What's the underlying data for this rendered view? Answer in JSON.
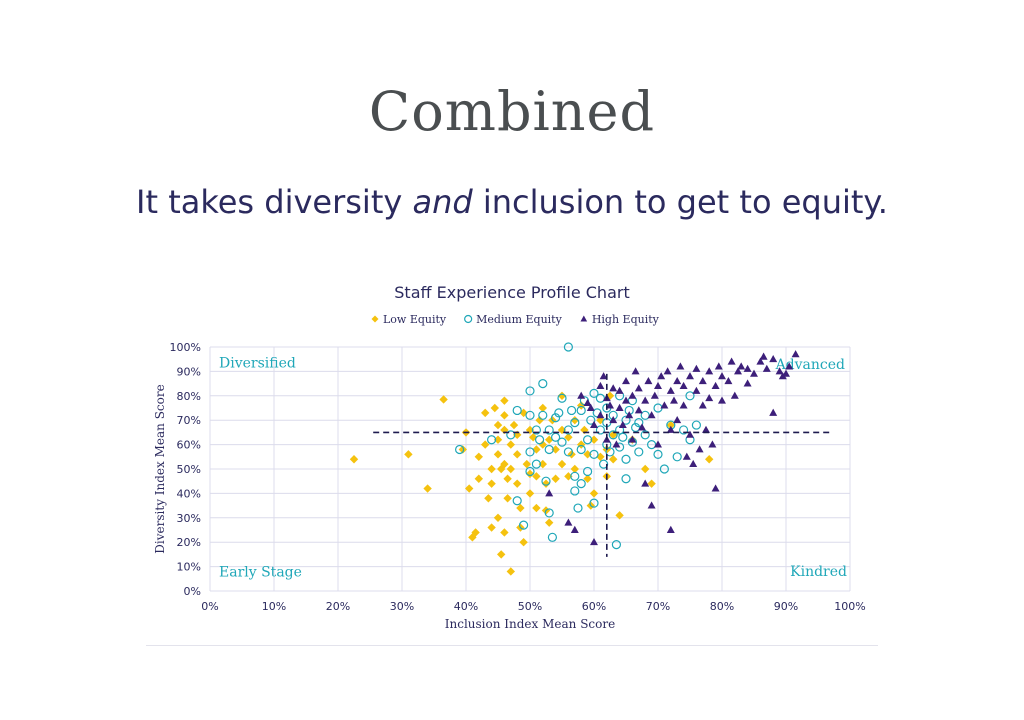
{
  "slide": {
    "title": "Combined",
    "subtitle_pre": "It takes diversity ",
    "subtitle_em": "and",
    "subtitle_post": " inclusion to get to equity."
  },
  "colors": {
    "low": "#f5c20f",
    "medium": "#1fa7b8",
    "high": "#3d1f7a",
    "quadrant_label": "#1fa7b8",
    "axis_text": "#2b2a5e",
    "grid": "#dcdcec"
  },
  "chart_data": {
    "type": "scatter",
    "title": "Staff Experience Profile Chart",
    "xlabel": "Inclusion Index Mean Score",
    "ylabel": "Diversity Index Mean Score",
    "xlim": [
      0,
      100
    ],
    "ylim": [
      0,
      100
    ],
    "x_ticks": [
      "0%",
      "10%",
      "20%",
      "30%",
      "40%",
      "50%",
      "60%",
      "70%",
      "80%",
      "90%",
      "100%"
    ],
    "y_ticks": [
      "0%",
      "10%",
      "20%",
      "30%",
      "40%",
      "50%",
      "60%",
      "70%",
      "80%",
      "90%",
      "100%"
    ],
    "grid": true,
    "legend_position": "top-center",
    "quadrant_labels": {
      "top_left": "Diversified",
      "top_right": "Advanced",
      "bottom_left": "Early Stage",
      "bottom_right": "Kindred"
    },
    "threshold_lines": {
      "x": 62,
      "y": 65
    },
    "series": [
      {
        "name": "Low Equity",
        "marker": "diamond",
        "points": [
          [
            22.5,
            54
          ],
          [
            31,
            56
          ],
          [
            34,
            42
          ],
          [
            36.5,
            78.5
          ],
          [
            39.5,
            58
          ],
          [
            40,
            65
          ],
          [
            40.5,
            42
          ],
          [
            41,
            22
          ],
          [
            41.5,
            24
          ],
          [
            42,
            46
          ],
          [
            42,
            55
          ],
          [
            43,
            73
          ],
          [
            43,
            60
          ],
          [
            43.5,
            38
          ],
          [
            44,
            44
          ],
          [
            44,
            50
          ],
          [
            44,
            26
          ],
          [
            44.5,
            75
          ],
          [
            45,
            68
          ],
          [
            45,
            62
          ],
          [
            45,
            56
          ],
          [
            45,
            30
          ],
          [
            45.5,
            50
          ],
          [
            45.5,
            15
          ],
          [
            46,
            78
          ],
          [
            46,
            72
          ],
          [
            46,
            66
          ],
          [
            46,
            52
          ],
          [
            46.5,
            46
          ],
          [
            46.5,
            38
          ],
          [
            46,
            24
          ],
          [
            47,
            8
          ],
          [
            47,
            60
          ],
          [
            47,
            50
          ],
          [
            47.5,
            68
          ],
          [
            48,
            64
          ],
          [
            48,
            56
          ],
          [
            48,
            44
          ],
          [
            48.5,
            34
          ],
          [
            48.5,
            26
          ],
          [
            49,
            73
          ],
          [
            49,
            20
          ],
          [
            49.5,
            52
          ],
          [
            50,
            66
          ],
          [
            50,
            48
          ],
          [
            50,
            40
          ],
          [
            50.5,
            63
          ],
          [
            51,
            58
          ],
          [
            51,
            47
          ],
          [
            51,
            34
          ],
          [
            51.5,
            70
          ],
          [
            52,
            75
          ],
          [
            52,
            60
          ],
          [
            52,
            52
          ],
          [
            52.5,
            44
          ],
          [
            52.5,
            33
          ],
          [
            53,
            28
          ],
          [
            53,
            62
          ],
          [
            53.5,
            70
          ],
          [
            54,
            58
          ],
          [
            54,
            46
          ],
          [
            55,
            66
          ],
          [
            55,
            52
          ],
          [
            55,
            80
          ],
          [
            56,
            63
          ],
          [
            56,
            47
          ],
          [
            56.5,
            56
          ],
          [
            57,
            70
          ],
          [
            57,
            50
          ],
          [
            58,
            60
          ],
          [
            58,
            76
          ],
          [
            58.5,
            66
          ],
          [
            59,
            56
          ],
          [
            59,
            46
          ],
          [
            59.5,
            35
          ],
          [
            60,
            40
          ],
          [
            60,
            62
          ],
          [
            61,
            70
          ],
          [
            61,
            55
          ],
          [
            62,
            58
          ],
          [
            62,
            47
          ],
          [
            62.5,
            80
          ],
          [
            63,
            64
          ],
          [
            63,
            54
          ],
          [
            64,
            31
          ],
          [
            66,
            62
          ],
          [
            68,
            50
          ],
          [
            69,
            44
          ],
          [
            72,
            68
          ],
          [
            78,
            54
          ]
        ]
      },
      {
        "name": "Medium Equity",
        "marker": "circle",
        "points": [
          [
            39,
            58
          ],
          [
            44,
            62
          ],
          [
            47,
            64
          ],
          [
            48,
            37
          ],
          [
            48,
            74
          ],
          [
            49,
            27
          ],
          [
            50,
            49
          ],
          [
            50,
            57
          ],
          [
            50,
            72
          ],
          [
            50,
            82
          ],
          [
            51,
            52
          ],
          [
            51,
            66
          ],
          [
            51.5,
            62
          ],
          [
            52,
            72
          ],
          [
            52,
            85
          ],
          [
            52.5,
            45
          ],
          [
            53,
            32
          ],
          [
            53,
            58
          ],
          [
            53,
            66
          ],
          [
            53.5,
            22
          ],
          [
            54,
            63
          ],
          [
            54,
            71
          ],
          [
            54.5,
            73
          ],
          [
            55,
            61
          ],
          [
            55,
            79
          ],
          [
            56,
            100
          ],
          [
            56,
            57
          ],
          [
            56,
            66
          ],
          [
            56.5,
            74
          ],
          [
            57,
            41
          ],
          [
            57,
            47
          ],
          [
            57,
            69
          ],
          [
            57.5,
            34
          ],
          [
            58,
            44
          ],
          [
            58,
            58
          ],
          [
            58,
            74
          ],
          [
            58.5,
            78
          ],
          [
            59,
            49
          ],
          [
            59,
            62
          ],
          [
            59.5,
            70
          ],
          [
            60,
            56
          ],
          [
            60,
            81
          ],
          [
            60,
            36
          ],
          [
            60.5,
            73
          ],
          [
            61,
            66
          ],
          [
            61,
            79
          ],
          [
            61.5,
            52
          ],
          [
            62,
            60
          ],
          [
            62,
            69
          ],
          [
            62,
            75
          ],
          [
            62.5,
            57
          ],
          [
            63,
            64
          ],
          [
            63,
            72
          ],
          [
            63.5,
            19
          ],
          [
            64,
            59
          ],
          [
            64,
            66
          ],
          [
            64,
            80
          ],
          [
            64.5,
            63
          ],
          [
            65,
            54
          ],
          [
            65,
            70
          ],
          [
            65,
            46
          ],
          [
            65.5,
            74
          ],
          [
            66,
            61
          ],
          [
            66,
            78
          ],
          [
            66.5,
            67
          ],
          [
            67,
            57
          ],
          [
            67,
            69
          ],
          [
            68,
            64
          ],
          [
            68,
            72
          ],
          [
            69,
            60
          ],
          [
            70,
            56
          ],
          [
            70,
            75
          ],
          [
            71,
            50
          ],
          [
            72,
            68
          ],
          [
            73,
            55
          ],
          [
            74,
            66
          ],
          [
            75,
            62
          ],
          [
            75,
            80
          ],
          [
            76,
            68
          ]
        ]
      },
      {
        "name": "High Equity",
        "marker": "triangle",
        "points": [
          [
            53,
            40
          ],
          [
            56,
            28
          ],
          [
            57,
            25
          ],
          [
            58,
            80
          ],
          [
            59,
            77
          ],
          [
            59.5,
            75
          ],
          [
            60,
            20
          ],
          [
            60,
            68
          ],
          [
            61,
            72
          ],
          [
            61,
            84
          ],
          [
            61.5,
            88
          ],
          [
            62,
            62
          ],
          [
            62,
            79
          ],
          [
            62.5,
            76
          ],
          [
            63,
            70
          ],
          [
            63,
            83
          ],
          [
            63.5,
            60
          ],
          [
            64,
            75
          ],
          [
            64,
            82
          ],
          [
            64.5,
            68
          ],
          [
            65,
            78
          ],
          [
            65,
            86
          ],
          [
            65.5,
            72
          ],
          [
            66,
            62
          ],
          [
            66,
            80
          ],
          [
            66.5,
            90
          ],
          [
            67,
            74
          ],
          [
            67,
            83
          ],
          [
            67.5,
            67
          ],
          [
            68,
            78
          ],
          [
            68,
            44
          ],
          [
            68.5,
            86
          ],
          [
            69,
            72
          ],
          [
            69,
            35
          ],
          [
            69.5,
            80
          ],
          [
            70,
            60
          ],
          [
            70,
            84
          ],
          [
            70.5,
            88
          ],
          [
            71,
            76
          ],
          [
            71.5,
            90
          ],
          [
            72,
            25
          ],
          [
            72,
            66
          ],
          [
            72,
            82
          ],
          [
            72.5,
            78
          ],
          [
            73,
            86
          ],
          [
            73,
            70
          ],
          [
            73.5,
            92
          ],
          [
            74,
            76
          ],
          [
            74,
            84
          ],
          [
            74.5,
            55
          ],
          [
            75,
            88
          ],
          [
            75,
            64
          ],
          [
            75.5,
            52
          ],
          [
            76,
            82
          ],
          [
            76,
            91
          ],
          [
            76.5,
            58
          ],
          [
            77,
            76
          ],
          [
            77,
            86
          ],
          [
            77.5,
            66
          ],
          [
            78,
            90
          ],
          [
            78,
            79
          ],
          [
            78.5,
            60
          ],
          [
            79,
            84
          ],
          [
            79,
            42
          ],
          [
            79.5,
            92
          ],
          [
            80,
            78
          ],
          [
            80,
            88
          ],
          [
            81,
            86
          ],
          [
            81.5,
            94
          ],
          [
            82,
            80
          ],
          [
            82.5,
            90
          ],
          [
            83,
            92
          ],
          [
            84,
            85
          ],
          [
            84,
            91
          ],
          [
            85,
            89
          ],
          [
            86,
            94
          ],
          [
            86.5,
            96
          ],
          [
            87,
            91
          ],
          [
            88,
            73
          ],
          [
            88,
            95
          ],
          [
            89,
            90
          ],
          [
            89.5,
            88
          ],
          [
            90,
            89
          ],
          [
            90.5,
            92
          ],
          [
            91.5,
            97
          ]
        ]
      }
    ]
  }
}
